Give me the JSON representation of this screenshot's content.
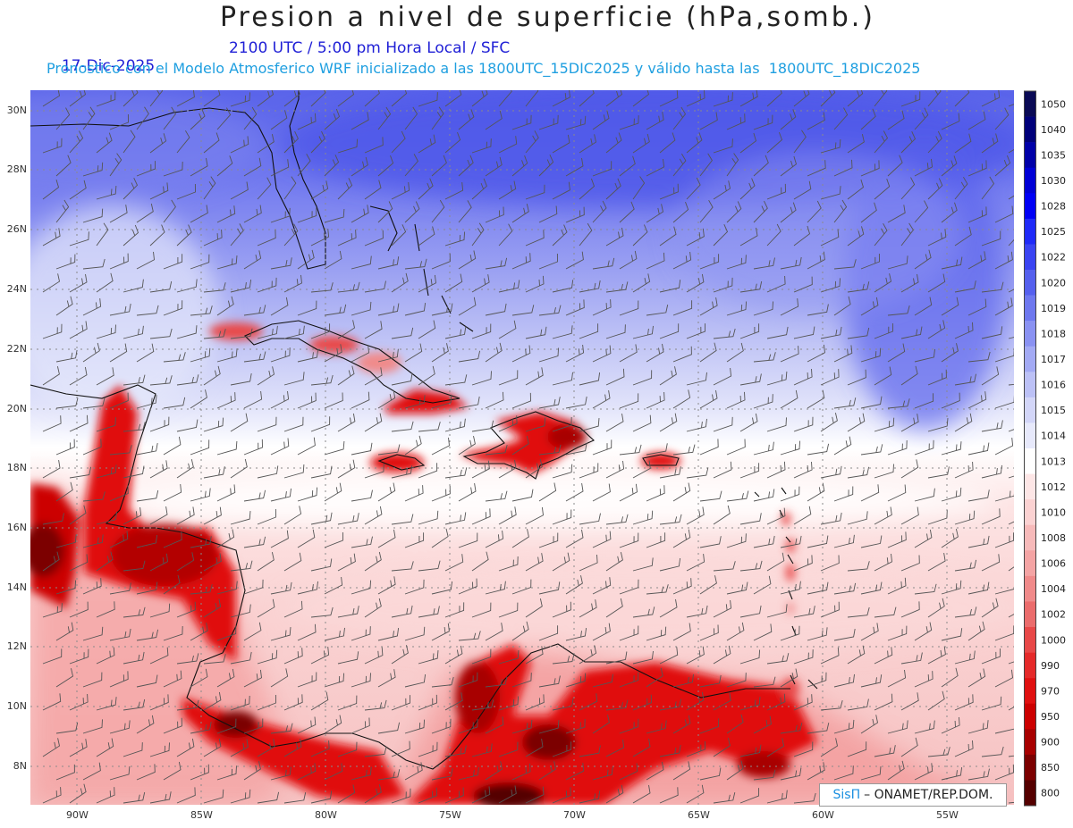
{
  "title": "Presion a nivel de superficie (hPa,somb.)",
  "date": "17-Dic-2025",
  "valid_time": "2100 UTC / 5:00 pm Hora Local / SFC",
  "model_line": "Pronostico con el Modelo Atmosferico WRF inicializado a las 1800UTC_15DIC2025 y válido hasta las  1800UTC_18DIC2025",
  "lat_labels": [
    "30N",
    "28N",
    "26N",
    "24N",
    "22N",
    "20N",
    "18N",
    "16N",
    "14N",
    "12N",
    "10N",
    "8N"
  ],
  "lon_labels": [
    "90W",
    "85W",
    "80W",
    "75W",
    "70W",
    "65W",
    "60W",
    "55W"
  ],
  "legend": {
    "levels": [
      "1050",
      "1040",
      "1035",
      "1030",
      "1028",
      "1025",
      "1022",
      "1020",
      "1019",
      "1018",
      "1017",
      "1016",
      "1015",
      "1014",
      "1013",
      "1012",
      "1010",
      "1008",
      "1006",
      "1004",
      "1002",
      "1000",
      "990",
      "970",
      "950",
      "900",
      "850",
      "800"
    ],
    "colors": [
      "#0a0a55",
      "#00007a",
      "#0000a8",
      "#0000d6",
      "#0000f5",
      "#1f2af8",
      "#3a44f2",
      "#5560ee",
      "#6e78ef",
      "#8a92f2",
      "#a3aaf4",
      "#bcc1f6",
      "#d3d6f8",
      "#e7e9fb",
      "#ffffff",
      "#fde6e6",
      "#fbd2d2",
      "#f7baba",
      "#f4a4a4",
      "#f08a8a",
      "#eb6c6c",
      "#e84848",
      "#e52a2a",
      "#e01010",
      "#cc0000",
      "#a80000",
      "#7c0000",
      "#550000"
    ]
  },
  "credit": {
    "brand": "SisΠ",
    "text": "– ONAMET/REP.DOM."
  }
}
